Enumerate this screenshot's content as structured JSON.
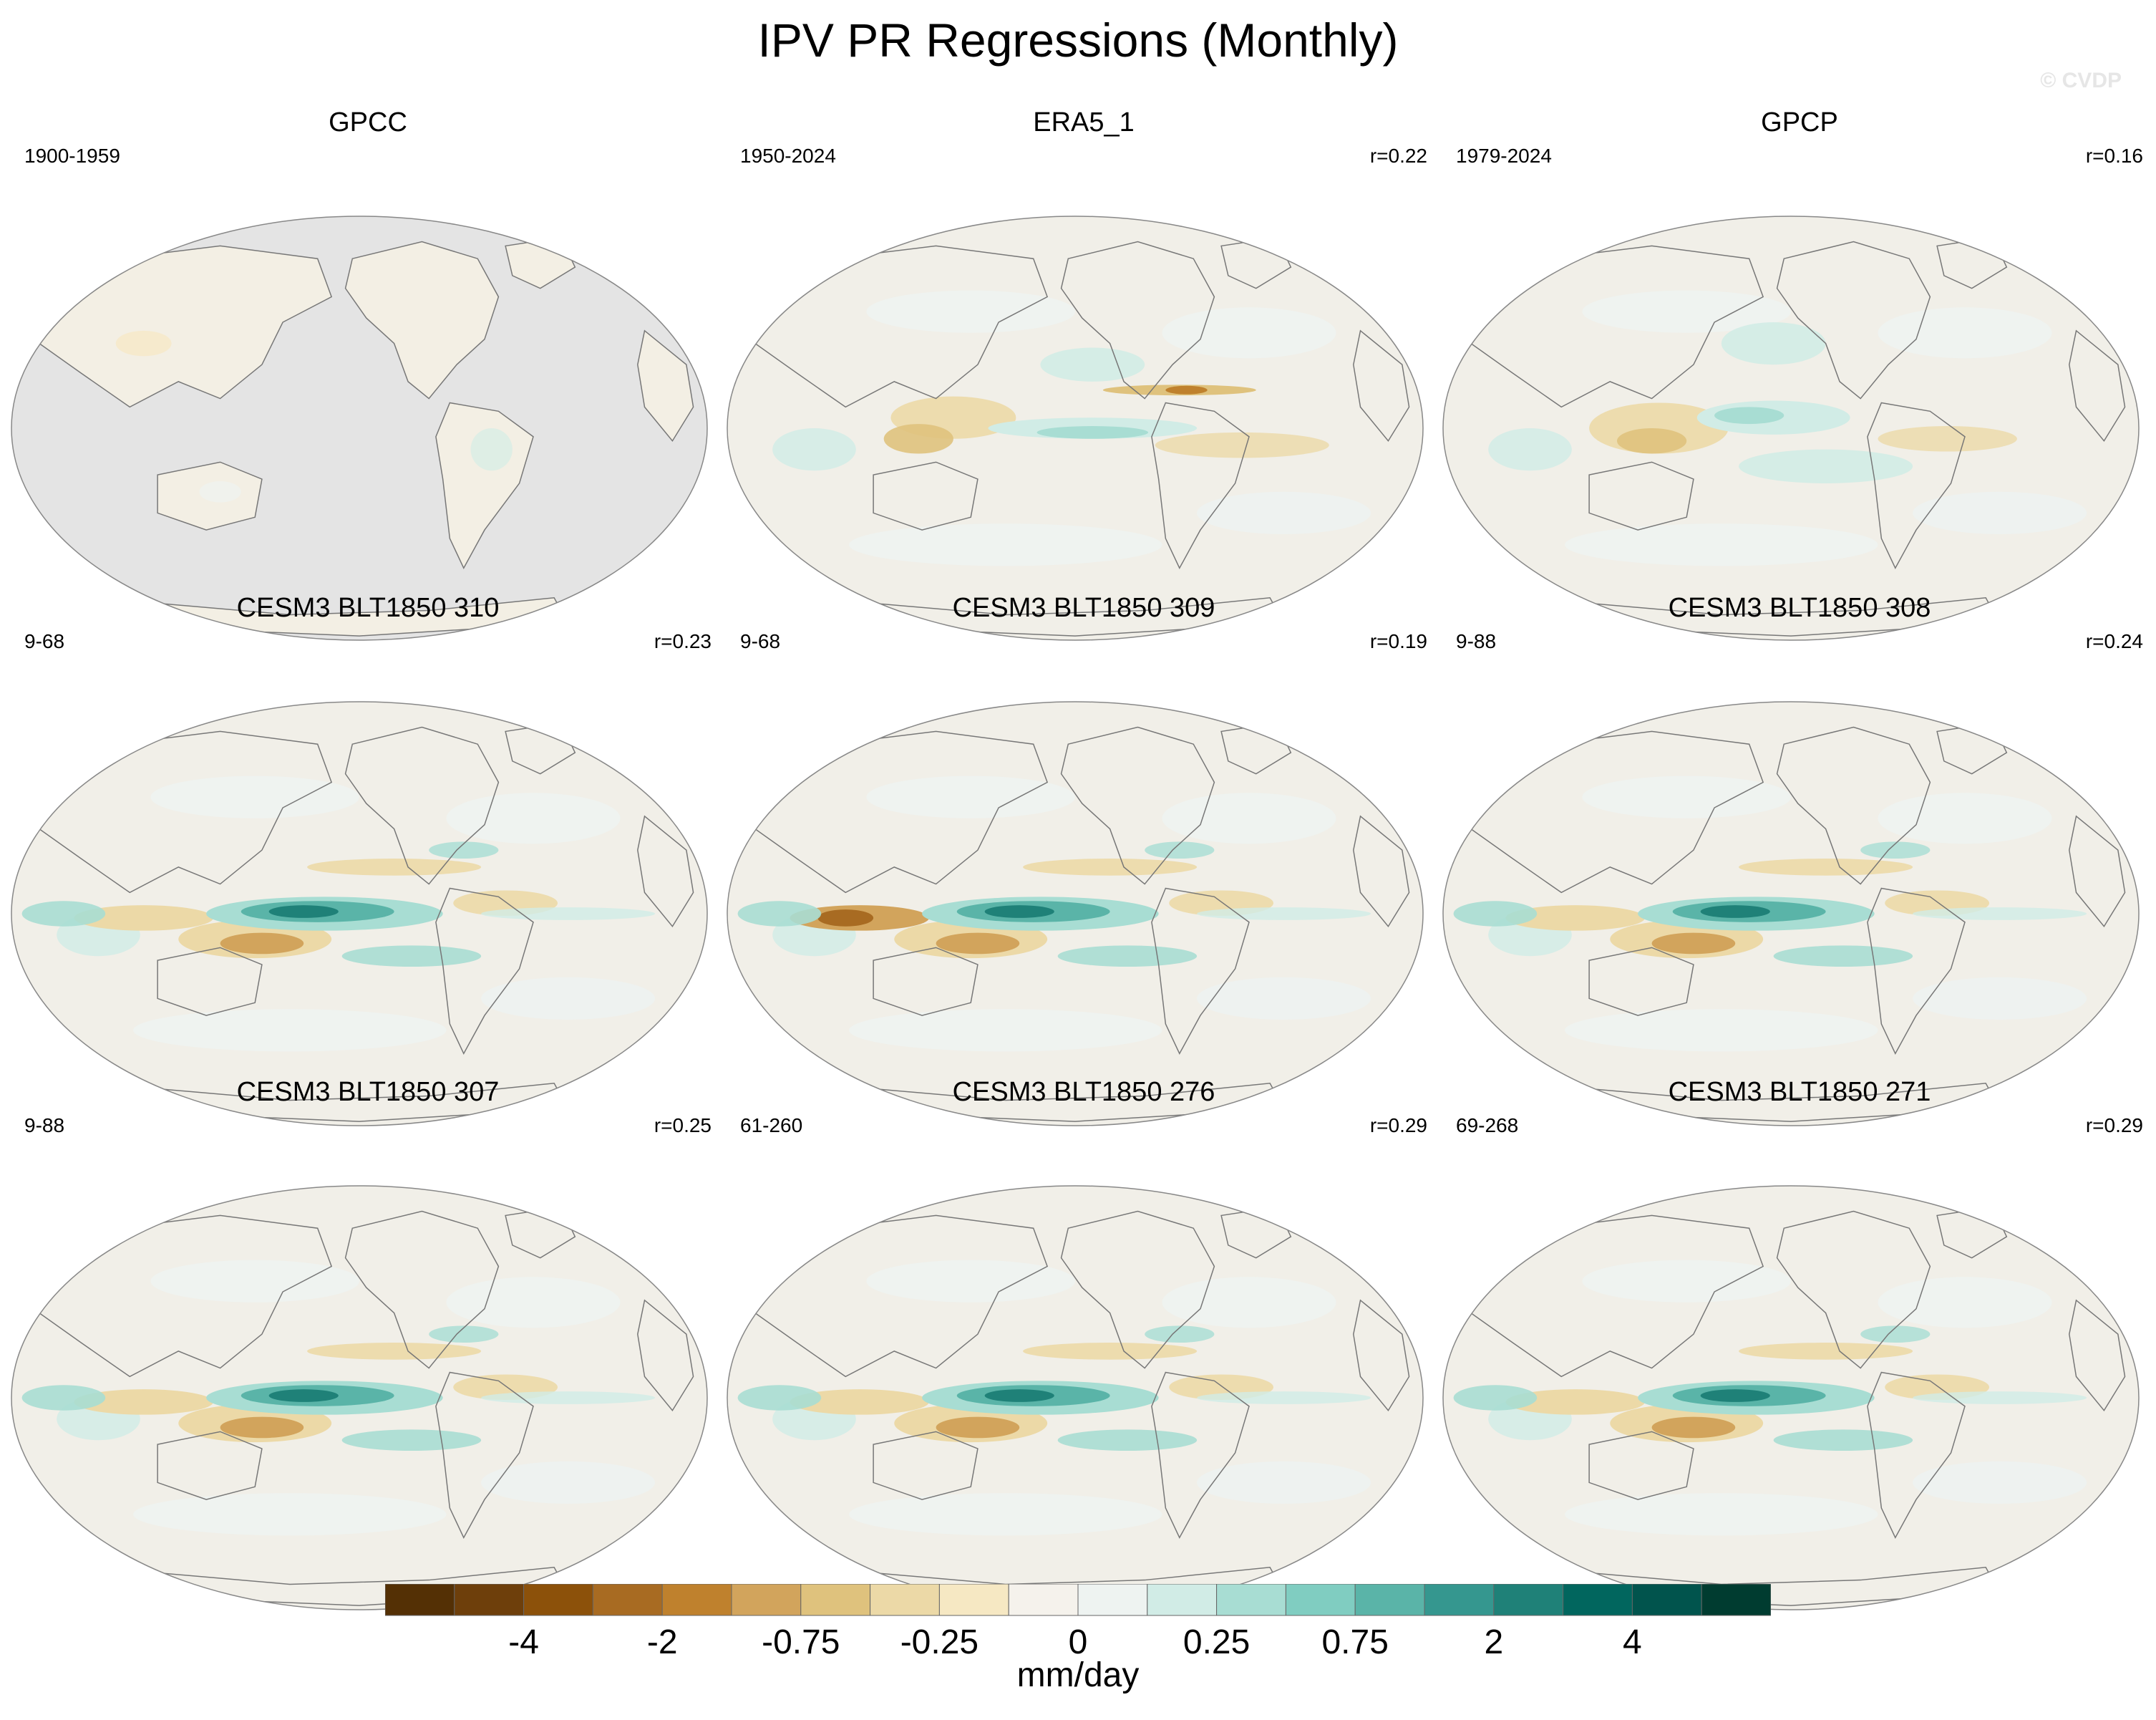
{
  "title": "IPV PR Regressions (Monthly)",
  "watermark": "© CVDP",
  "panels": [
    {
      "title": "GPCC",
      "range": "1900-1959",
      "corr": "",
      "style": "gpcc"
    },
    {
      "title": "ERA5_1",
      "range": "1950-2024",
      "corr": "r=0.22",
      "style": "era5"
    },
    {
      "title": "GPCP",
      "range": "1979-2024",
      "corr": "r=0.16",
      "style": "gpcp"
    },
    {
      "title": "CESM3 BLT1850 310",
      "range": "9-68",
      "corr": "r=0.23",
      "style": "model"
    },
    {
      "title": "CESM3 BLT1850 309",
      "range": "9-68",
      "corr": "r=0.19",
      "style": "model2"
    },
    {
      "title": "CESM3 BLT1850 308",
      "range": "9-88",
      "corr": "r=0.24",
      "style": "model"
    },
    {
      "title": "CESM3 BLT1850 307",
      "range": "9-88",
      "corr": "r=0.25",
      "style": "model"
    },
    {
      "title": "CESM3 BLT1850 276",
      "range": "61-260",
      "corr": "r=0.29",
      "style": "model"
    },
    {
      "title": "CESM3 BLT1850 271",
      "range": "69-268",
      "corr": "r=0.29",
      "style": "model"
    }
  ],
  "colorbar": {
    "colors": [
      "#543005",
      "#6e3f0b",
      "#8c510a",
      "#a86b22",
      "#bf812d",
      "#d2a45c",
      "#dfc27d",
      "#ecd9a7",
      "#f6e8c3",
      "#f5f2ec",
      "#eef3f1",
      "#d1ece6",
      "#a8ddd3",
      "#80cdc1",
      "#5ab4a8",
      "#35978f",
      "#1f8178",
      "#01665e",
      "#01544d",
      "#003c30"
    ],
    "labels": [
      "-4",
      "-2",
      "-0.75",
      "-0.25",
      "0",
      "0.25",
      "0.75",
      "2",
      "4"
    ],
    "unit": "mm/day"
  },
  "legend_colors": {
    "land_mask": "#e4e4e4",
    "coast": "#777777",
    "ocean_base": "#f1efe8"
  }
}
